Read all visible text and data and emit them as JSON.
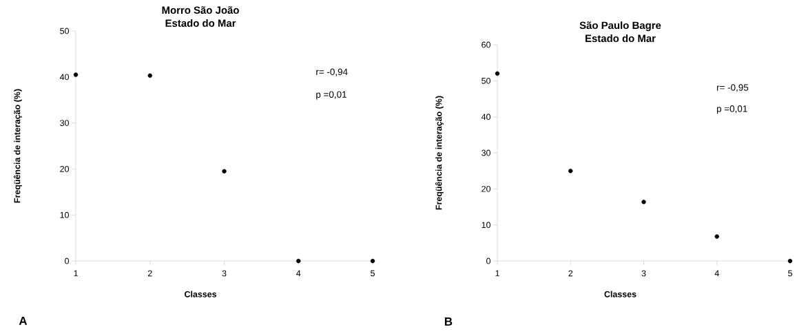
{
  "chart_data": [
    {
      "type": "scatter",
      "title": "Morro São João",
      "subtitle": "Estado do Mar",
      "xlabel": "Classes",
      "ylabel": "Freqüência de interação (%)",
      "x": [
        1,
        2,
        3,
        4,
        5
      ],
      "values": [
        40.5,
        40.3,
        19.5,
        0,
        0
      ],
      "color": "#000000",
      "marker": "circle",
      "xlim": [
        1,
        5
      ],
      "xticks": [
        1,
        2,
        3,
        4,
        5
      ],
      "ylim": [
        0,
        50
      ],
      "yticks": [
        0,
        10,
        20,
        30,
        40,
        50
      ],
      "annotations": [
        "r= -0,94",
        "p =0,01",
        "A"
      ]
    },
    {
      "type": "scatter",
      "title": "São Paulo Bagre",
      "subtitle": "Estado do Mar",
      "xlabel": "Classes",
      "ylabel": "Freqüência de interação (%)",
      "x": [
        1,
        2,
        3,
        4,
        5
      ],
      "values": [
        52,
        25,
        16.4,
        6.8,
        0
      ],
      "color": "#000000",
      "marker": "circle",
      "xlim": [
        1,
        5
      ],
      "xticks": [
        1,
        2,
        3,
        4,
        5
      ],
      "ylim": [
        0,
        60
      ],
      "yticks": [
        0,
        10,
        20,
        30,
        40,
        50,
        60
      ],
      "annotations": [
        "r= -0,95",
        "p =0,01",
        "B"
      ]
    }
  ]
}
